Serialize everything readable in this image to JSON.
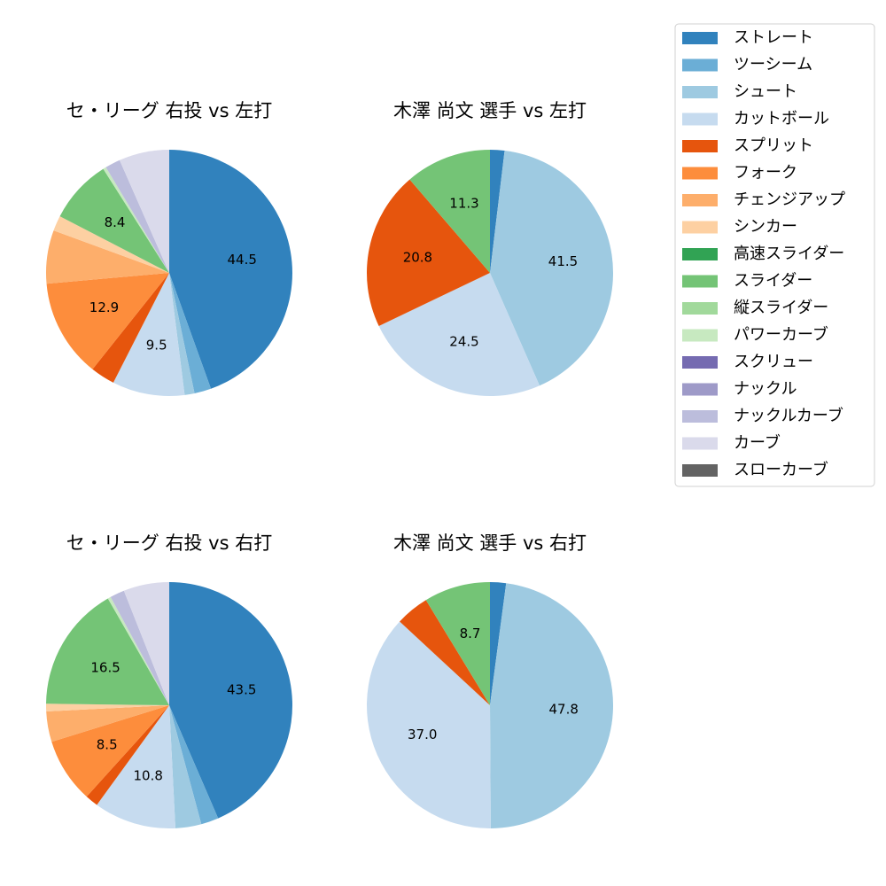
{
  "colors": {
    "ストレート": "#3182bd",
    "ツーシーム": "#6baed6",
    "シュート": "#9ecae1",
    "カットボール": "#c6dbef",
    "スプリット": "#e6550d",
    "フォーク": "#fd8d3c",
    "チェンジアップ": "#fdae6b",
    "シンカー": "#fdd0a2",
    "高速スライダー": "#31a354",
    "スライダー": "#74c476",
    "縦スライダー": "#a1d99b",
    "パワーカーブ": "#c7e9c0",
    "スクリュー": "#756bb1",
    "ナックル": "#9e9ac8",
    "ナックルカーブ": "#bcbddc",
    "カーブ": "#dadaeb",
    "スローカーブ": "#636363"
  },
  "chart_data": [
    {
      "type": "pie",
      "title": "セ・リーグ 右投 vs 左打",
      "start_angle": 90,
      "direction": "clockwise",
      "slices": [
        {
          "label": "ストレート",
          "value": 44.5,
          "show_label": true
        },
        {
          "label": "ツーシーム",
          "value": 2.2,
          "show_label": false
        },
        {
          "label": "シュート",
          "value": 1.3,
          "show_label": false
        },
        {
          "label": "カットボール",
          "value": 9.5,
          "show_label": true
        },
        {
          "label": "スプリット",
          "value": 3.2,
          "show_label": false
        },
        {
          "label": "フォーク",
          "value": 12.9,
          "show_label": true
        },
        {
          "label": "チェンジアップ",
          "value": 7.0,
          "show_label": false
        },
        {
          "label": "シンカー",
          "value": 2.0,
          "show_label": false
        },
        {
          "label": "スライダー",
          "value": 8.4,
          "show_label": true
        },
        {
          "label": "パワーカーブ",
          "value": 0.4,
          "show_label": false
        },
        {
          "label": "ナックルカーブ",
          "value": 2.0,
          "show_label": false
        },
        {
          "label": "カーブ",
          "value": 6.6,
          "show_label": false
        }
      ]
    },
    {
      "type": "pie",
      "title": "木澤 尚文 選手 vs 左打",
      "start_angle": 90,
      "direction": "clockwise",
      "slices": [
        {
          "label": "ストレート",
          "value": 1.9,
          "show_label": false
        },
        {
          "label": "シュート",
          "value": 41.5,
          "show_label": true
        },
        {
          "label": "カットボール",
          "value": 24.5,
          "show_label": true
        },
        {
          "label": "スプリット",
          "value": 20.8,
          "show_label": true
        },
        {
          "label": "スライダー",
          "value": 11.3,
          "show_label": true
        }
      ]
    },
    {
      "type": "pie",
      "title": "セ・リーグ 右投 vs 右打",
      "start_angle": 90,
      "direction": "clockwise",
      "slices": [
        {
          "label": "ストレート",
          "value": 43.5,
          "show_label": true
        },
        {
          "label": "ツーシーム",
          "value": 2.3,
          "show_label": false
        },
        {
          "label": "シュート",
          "value": 3.4,
          "show_label": false
        },
        {
          "label": "カットボール",
          "value": 10.8,
          "show_label": true
        },
        {
          "label": "スプリット",
          "value": 1.7,
          "show_label": false
        },
        {
          "label": "フォーク",
          "value": 8.5,
          "show_label": true
        },
        {
          "label": "チェンジアップ",
          "value": 4.0,
          "show_label": false
        },
        {
          "label": "シンカー",
          "value": 1.0,
          "show_label": false
        },
        {
          "label": "スライダー",
          "value": 16.5,
          "show_label": true
        },
        {
          "label": "パワーカーブ",
          "value": 0.4,
          "show_label": false
        },
        {
          "label": "ナックルカーブ",
          "value": 1.9,
          "show_label": false
        },
        {
          "label": "カーブ",
          "value": 6.0,
          "show_label": false
        }
      ]
    },
    {
      "type": "pie",
      "title": "木澤 尚文 選手 vs 右打",
      "start_angle": 90,
      "direction": "clockwise",
      "slices": [
        {
          "label": "ストレート",
          "value": 2.1,
          "show_label": false
        },
        {
          "label": "シュート",
          "value": 47.8,
          "show_label": true
        },
        {
          "label": "カットボール",
          "value": 37.0,
          "show_label": true
        },
        {
          "label": "スプリット",
          "value": 4.4,
          "show_label": false
        },
        {
          "label": "スライダー",
          "value": 8.7,
          "show_label": true
        }
      ]
    }
  ],
  "legend": {
    "placement": "top-right",
    "entries": [
      "ストレート",
      "ツーシーム",
      "シュート",
      "カットボール",
      "スプリット",
      "フォーク",
      "チェンジアップ",
      "シンカー",
      "高速スライダー",
      "スライダー",
      "縦スライダー",
      "パワーカーブ",
      "スクリュー",
      "ナックル",
      "ナックルカーブ",
      "カーブ",
      "スローカーブ"
    ]
  }
}
